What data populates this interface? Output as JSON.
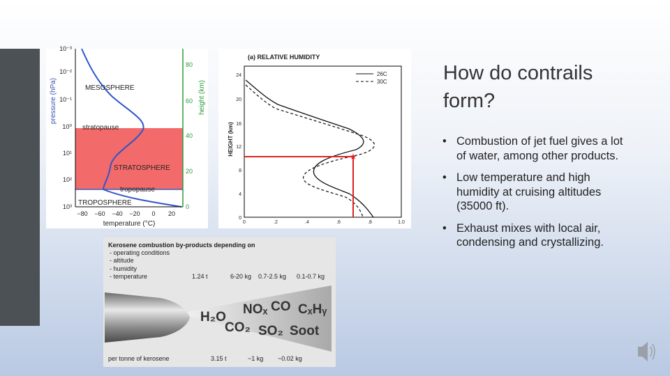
{
  "slide": {
    "title": "How do contrails form?",
    "bullets": [
      "Combustion of jet fuel gives a lot of water, among other products.",
      "Low temperature and high humidity at cruising altitudes (35000 ft).",
      "Exhaust mixes with local air, condensing and crystallizing."
    ]
  },
  "figure_atmosphere": {
    "pressure_axis_label": "pressure (hPa)",
    "pressure_ticks": [
      "10⁻³",
      "10⁻²",
      "10⁻¹",
      "10⁰",
      "10¹",
      "10²",
      "10³"
    ],
    "height_axis_label": "height (km)",
    "height_ticks": [
      "80",
      "60",
      "40",
      "20",
      "0"
    ],
    "temperature_axis_label": "temperature (°C)",
    "temperature_ticks": [
      "−80",
      "−60",
      "−40",
      "−20",
      "0",
      "20"
    ],
    "layers": [
      "MESOSPHERE",
      "stratopause",
      "STRATOSPHERE",
      "tropopause",
      "TROPOSPHERE"
    ]
  },
  "figure_humidity": {
    "title": "(a) RELATIVE HUMIDITY",
    "y_axis_label": "HEIGHT (km)",
    "yticks": [
      "24",
      "20",
      "16",
      "12",
      "8",
      "4",
      "0"
    ],
    "xticks": [
      "0",
      ".2",
      ".4",
      ".6",
      ".8",
      "1.0"
    ],
    "legend": [
      "26C",
      "30C"
    ]
  },
  "figure_kerosene": {
    "heading": "Kerosene combustion by-products depending on",
    "conditions": [
      "- operating conditions",
      "- altitude",
      "- humidity",
      "- temperature"
    ],
    "amounts_top": [
      "1.24 t",
      "6-20 kg",
      "0.7-2.5 kg",
      "0.1-0.7 kg"
    ],
    "species": [
      "H₂O",
      "NOₓ",
      "CO",
      "CₓHᵧ",
      "CO₂",
      "SO₂",
      "Soot"
    ],
    "footer": "per tonne of kerosene",
    "amounts_bottom": [
      "3.15 t",
      "~1 kg",
      "~0.02 kg"
    ]
  }
}
